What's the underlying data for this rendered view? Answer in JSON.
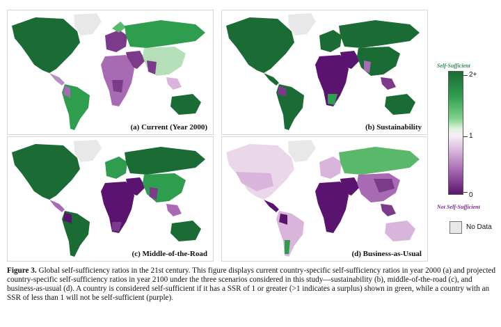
{
  "panels": {
    "a": {
      "label": "(a) Current (Year 2000)"
    },
    "b": {
      "label": "(b) Sustainability"
    },
    "c": {
      "label": "(c) Middle-of-the-Road"
    },
    "d": {
      "label": "(d) Business-as-Usual"
    }
  },
  "legend": {
    "top_label": "Self-Sufficient",
    "bottom_label": "Not Self-Sufficient",
    "ticks": [
      "2+",
      "1",
      "0"
    ],
    "no_data_label": "No Data",
    "colors": {
      "high": "#1b6b34",
      "mid": "#f7eef6",
      "low": "#5a1470",
      "no_data": "#e8e8e8"
    }
  },
  "caption": {
    "heading": "Figure 3.",
    "text": " Global self-sufficiency ratios in the 21st century. This figure displays current country-specific self-sufficiency ratios in year 2000 (a) and projected country-specific self-sufficiency ratios in year 2100 under the three scenarios considered in this study—sustainability (b), middle-of-the-road (c), and business-as-usual (d). A country is considered self-sufficient if it has a SSR of 1 or greater (>1 indicates a surplus) shown in green, while a country with an SSR of less than 1 will not be self-sufficient (purple)."
  }
}
